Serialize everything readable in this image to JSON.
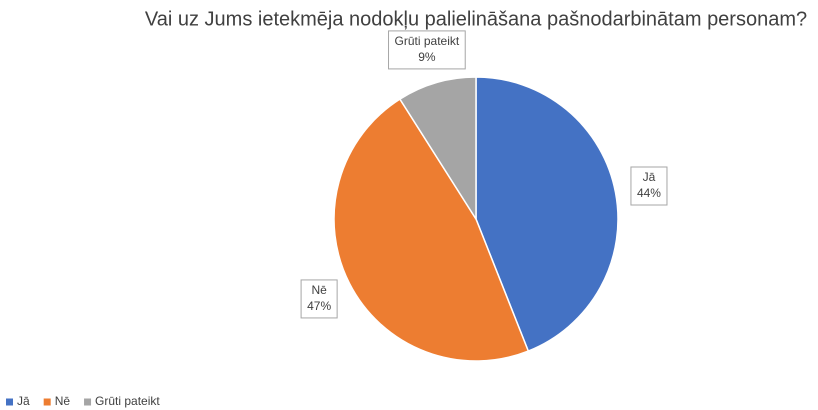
{
  "chart_data": {
    "type": "pie",
    "title": "Vai uz Jums ietekmēja nodokļu palielināšana pašnodarbinātam personam?",
    "categories": [
      "Jā",
      "Nē",
      "Grūti pateikt"
    ],
    "values": [
      44,
      47,
      9
    ],
    "value_labels": [
      "44%",
      "47%",
      "9%"
    ],
    "colors": [
      "#4472c4",
      "#ed7d31",
      "#a5a5a5"
    ],
    "legend": "bottom-left"
  }
}
